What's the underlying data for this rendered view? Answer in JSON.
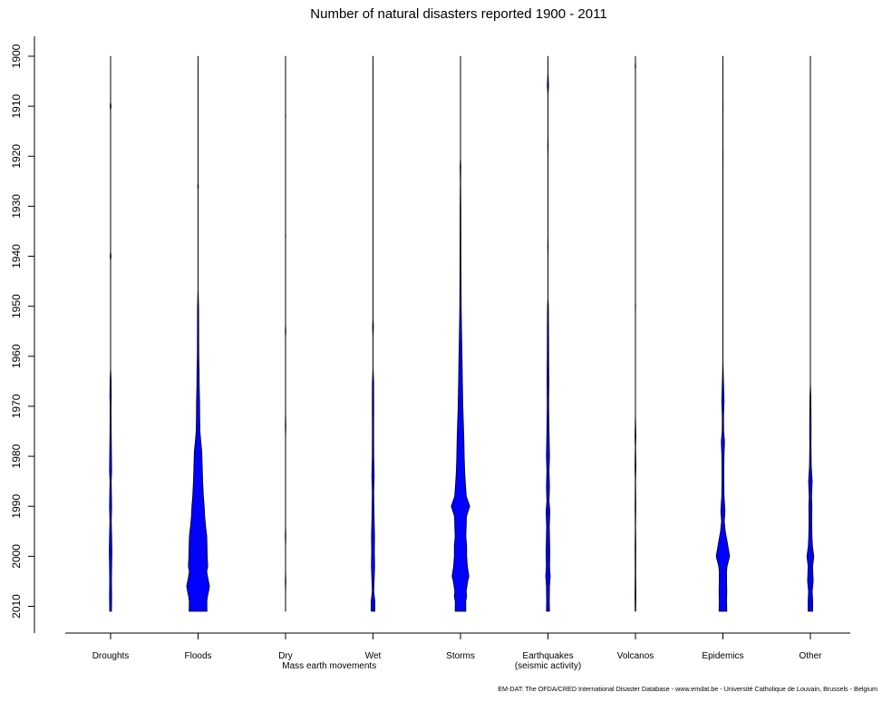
{
  "chart_data": {
    "type": "violin",
    "title": "Number of natural disasters reported 1900 - 2011",
    "credit": "EM-DAT: The OFDA/CRED International Disaster Database - www.emdat.be - Université Catholique de Louvain, Brussels - Belgium",
    "orientation": "vertical",
    "ylim": [
      1900,
      2011
    ],
    "y_reversed": true,
    "y_ticks": [
      1900,
      1910,
      1920,
      1930,
      1940,
      1950,
      1960,
      1970,
      1980,
      1990,
      2000,
      2010
    ],
    "y_tick_labels": [
      "1900",
      "1910",
      "1920",
      "1930",
      "1940",
      "1950",
      "1960",
      "1970",
      "1980",
      "1990",
      "2000",
      "2010"
    ],
    "fill_color": "#0000ff",
    "stroke_color": "#000000",
    "max_count": 460,
    "categories": [
      {
        "label": "Droughts",
        "label2": "",
        "profile": [
          [
            1900,
            0
          ],
          [
            1909,
            0
          ],
          [
            1910,
            6
          ],
          [
            1911,
            0
          ],
          [
            1939,
            0
          ],
          [
            1940,
            6
          ],
          [
            1941,
            0
          ],
          [
            1962,
            0
          ],
          [
            1965,
            7
          ],
          [
            1968,
            10
          ],
          [
            1970,
            6
          ],
          [
            1975,
            8
          ],
          [
            1980,
            12
          ],
          [
            1983,
            14
          ],
          [
            1985,
            8
          ],
          [
            1988,
            12
          ],
          [
            1990,
            14
          ],
          [
            1993,
            10
          ],
          [
            1996,
            14
          ],
          [
            1999,
            18
          ],
          [
            2002,
            14
          ],
          [
            2005,
            12
          ],
          [
            2008,
            14
          ],
          [
            2011,
            12
          ]
        ]
      },
      {
        "label": "Floods",
        "label2": "",
        "profile": [
          [
            1900,
            0
          ],
          [
            1925,
            0
          ],
          [
            1926,
            5
          ],
          [
            1927,
            0
          ],
          [
            1946,
            0
          ],
          [
            1950,
            7
          ],
          [
            1955,
            9
          ],
          [
            1960,
            10
          ],
          [
            1963,
            14
          ],
          [
            1966,
            16
          ],
          [
            1969,
            20
          ],
          [
            1972,
            22
          ],
          [
            1975,
            26
          ],
          [
            1977,
            36
          ],
          [
            1979,
            50
          ],
          [
            1982,
            56
          ],
          [
            1985,
            62
          ],
          [
            1988,
            72
          ],
          [
            1990,
            82
          ],
          [
            1992,
            88
          ],
          [
            1994,
            100
          ],
          [
            1996,
            116
          ],
          [
            1998,
            120
          ],
          [
            2000,
            122
          ],
          [
            2002,
            130
          ],
          [
            2003,
            116
          ],
          [
            2004,
            126
          ],
          [
            2006,
            152
          ],
          [
            2007,
            140
          ],
          [
            2008,
            126
          ],
          [
            2009,
            118
          ],
          [
            2011,
            120
          ]
        ]
      },
      {
        "label": "Dry",
        "label2": "Mass earth movements",
        "profile": [
          [
            1900,
            0
          ],
          [
            1911,
            0
          ],
          [
            1912,
            3
          ],
          [
            1913,
            0
          ],
          [
            1935,
            0
          ],
          [
            1936,
            3
          ],
          [
            1937,
            0
          ],
          [
            1953,
            0
          ],
          [
            1955,
            4
          ],
          [
            1957,
            0
          ],
          [
            1970,
            0
          ],
          [
            1974,
            4
          ],
          [
            1977,
            0
          ],
          [
            1993,
            0
          ],
          [
            1996,
            4
          ],
          [
            1999,
            0
          ],
          [
            2002,
            0
          ],
          [
            2005,
            4
          ],
          [
            2008,
            0
          ],
          [
            2011,
            0
          ]
        ]
      },
      {
        "label": "Wet",
        "label2": "",
        "profile": [
          [
            1900,
            0
          ],
          [
            1952,
            0
          ],
          [
            1954,
            6
          ],
          [
            1957,
            0
          ],
          [
            1962,
            0
          ],
          [
            1965,
            8
          ],
          [
            1970,
            10
          ],
          [
            1975,
            8
          ],
          [
            1980,
            10
          ],
          [
            1984,
            16
          ],
          [
            1987,
            10
          ],
          [
            1990,
            12
          ],
          [
            1993,
            16
          ],
          [
            1996,
            20
          ],
          [
            1999,
            18
          ],
          [
            2002,
            22
          ],
          [
            2005,
            14
          ],
          [
            2007,
            10
          ],
          [
            2009,
            26
          ],
          [
            2011,
            24
          ]
        ]
      },
      {
        "label": "Storms",
        "label2": "",
        "profile": [
          [
            1900,
            0
          ],
          [
            1920,
            0
          ],
          [
            1922,
            5
          ],
          [
            1925,
            3
          ],
          [
            1930,
            5
          ],
          [
            1940,
            6
          ],
          [
            1946,
            8
          ],
          [
            1950,
            10
          ],
          [
            1955,
            14
          ],
          [
            1960,
            20
          ],
          [
            1965,
            26
          ],
          [
            1970,
            32
          ],
          [
            1974,
            40
          ],
          [
            1977,
            46
          ],
          [
            1980,
            50
          ],
          [
            1983,
            56
          ],
          [
            1986,
            68
          ],
          [
            1988,
            78
          ],
          [
            1990,
            124
          ],
          [
            1992,
            80
          ],
          [
            1994,
            76
          ],
          [
            1996,
            72
          ],
          [
            1998,
            82
          ],
          [
            2000,
            82
          ],
          [
            2002,
            92
          ],
          [
            2004,
            112
          ],
          [
            2005,
            96
          ],
          [
            2007,
            76
          ],
          [
            2008,
            82
          ],
          [
            2009,
            70
          ],
          [
            2011,
            72
          ]
        ]
      },
      {
        "label": "Earthquakes",
        "label2": "(seismic activity)",
        "profile": [
          [
            1900,
            0
          ],
          [
            1903,
            0
          ],
          [
            1904,
            4
          ],
          [
            1906,
            8
          ],
          [
            1908,
            0
          ],
          [
            1915,
            0
          ],
          [
            1918,
            4
          ],
          [
            1921,
            0
          ],
          [
            1935,
            0
          ],
          [
            1938,
            4
          ],
          [
            1941,
            0
          ],
          [
            1948,
            0
          ],
          [
            1950,
            6
          ],
          [
            1955,
            8
          ],
          [
            1960,
            10
          ],
          [
            1965,
            12
          ],
          [
            1970,
            10
          ],
          [
            1975,
            14
          ],
          [
            1980,
            20
          ],
          [
            1983,
            14
          ],
          [
            1986,
            20
          ],
          [
            1989,
            14
          ],
          [
            1991,
            26
          ],
          [
            1994,
            18
          ],
          [
            1996,
            20
          ],
          [
            1999,
            26
          ],
          [
            2002,
            22
          ],
          [
            2004,
            30
          ],
          [
            2006,
            20
          ],
          [
            2009,
            18
          ],
          [
            2011,
            20
          ]
        ]
      },
      {
        "label": "Volcanos",
        "label2": "",
        "profile": [
          [
            1900,
            0
          ],
          [
            1901,
            0
          ],
          [
            1902,
            4
          ],
          [
            1903,
            0
          ],
          [
            1948,
            0
          ],
          [
            1950,
            3
          ],
          [
            1952,
            0
          ],
          [
            1970,
            0
          ],
          [
            1973,
            3
          ],
          [
            1976,
            6
          ],
          [
            1978,
            3
          ],
          [
            1982,
            6
          ],
          [
            1985,
            3
          ],
          [
            1990,
            5
          ],
          [
            1994,
            3
          ],
          [
            1998,
            5
          ],
          [
            2003,
            4
          ],
          [
            2008,
            6
          ],
          [
            2011,
            4
          ]
        ]
      },
      {
        "label": "Epidemics",
        "label2": "",
        "profile": [
          [
            1900,
            0
          ],
          [
            1906,
            0
          ],
          [
            1910,
            3
          ],
          [
            1915,
            0
          ],
          [
            1920,
            3
          ],
          [
            1926,
            0
          ],
          [
            1960,
            0
          ],
          [
            1964,
            6
          ],
          [
            1966,
            10
          ],
          [
            1969,
            16
          ],
          [
            1972,
            8
          ],
          [
            1975,
            10
          ],
          [
            1977,
            22
          ],
          [
            1980,
            14
          ],
          [
            1984,
            12
          ],
          [
            1988,
            16
          ],
          [
            1991,
            28
          ],
          [
            1993,
            18
          ],
          [
            1995,
            32
          ],
          [
            1997,
            56
          ],
          [
            2000,
            90
          ],
          [
            2002,
            56
          ],
          [
            2003,
            48
          ],
          [
            2005,
            50
          ],
          [
            2007,
            52
          ],
          [
            2009,
            50
          ],
          [
            2011,
            52
          ]
        ]
      },
      {
        "label": "Other",
        "label2": "",
        "profile": [
          [
            1900,
            0
          ],
          [
            1965,
            0
          ],
          [
            1968,
            6
          ],
          [
            1971,
            8
          ],
          [
            1975,
            10
          ],
          [
            1978,
            8
          ],
          [
            1982,
            12
          ],
          [
            1985,
            24
          ],
          [
            1988,
            16
          ],
          [
            1990,
            20
          ],
          [
            1993,
            18
          ],
          [
            1996,
            22
          ],
          [
            1998,
            28
          ],
          [
            2000,
            46
          ],
          [
            2002,
            30
          ],
          [
            2005,
            38
          ],
          [
            2007,
            24
          ],
          [
            2009,
            32
          ],
          [
            2011,
            30
          ]
        ]
      }
    ]
  }
}
